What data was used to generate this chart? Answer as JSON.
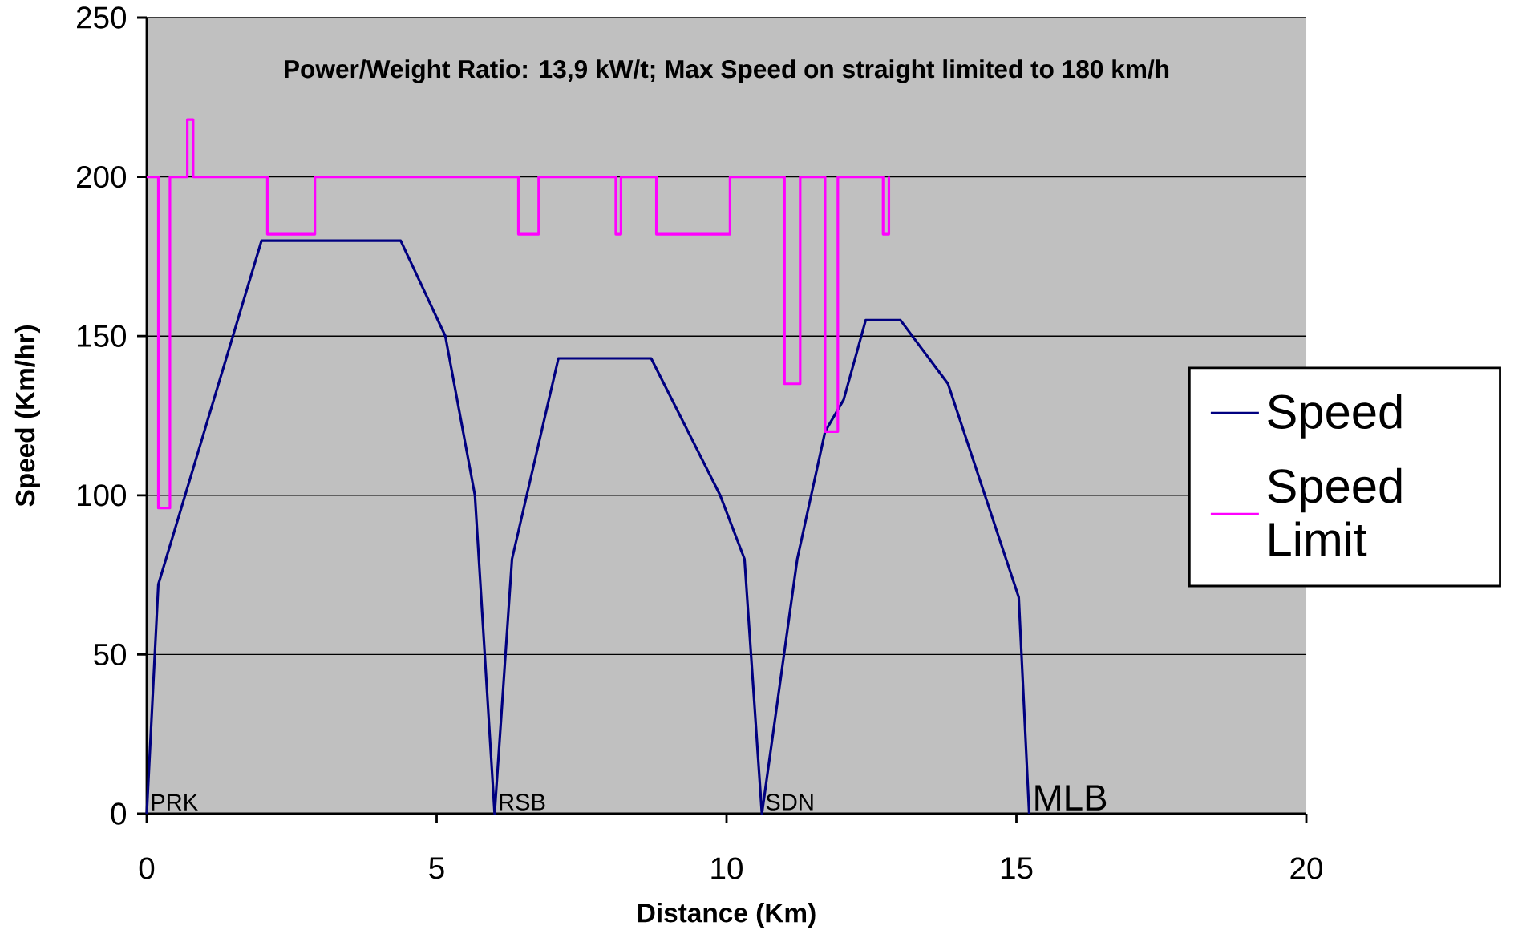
{
  "chart_data": {
    "type": "line",
    "title": "Power/Weight Ratio: 13,9 kW/t;  Max Speed on straight limited to 180 km/h",
    "xlabel": "Distance (Km)",
    "ylabel": "Speed (Km/hr)",
    "xlim": [
      0,
      20
    ],
    "xticks": [
      0,
      5,
      10,
      15,
      20
    ],
    "ylim": [
      0,
      250
    ],
    "yticks": [
      0,
      50,
      100,
      150,
      200,
      250
    ],
    "grid": "y",
    "legend": "right",
    "marker": "none",
    "line_style": "solid",
    "series": [
      {
        "name": "Speed",
        "color": "#000080",
        "x": [
          0,
          0.2,
          1.98,
          4.38,
          5.15,
          5.66,
          6.0,
          6.3,
          7.1,
          8.7,
          9.89,
          10.31,
          10.61,
          11.22,
          11.7,
          12.02,
          12.4,
          13.0,
          13.82,
          15.04,
          15.22
        ],
        "values": [
          0,
          72,
          180,
          180,
          150,
          100,
          0,
          80,
          143,
          143,
          100,
          80,
          0,
          80,
          120,
          130,
          155,
          155,
          135,
          68,
          0
        ]
      },
      {
        "name": "Speed Limit",
        "type": "step",
        "color": "#ff00ff",
        "x": [
          0,
          0.2,
          0.4,
          0.7,
          0.8,
          2.08,
          2.9,
          6.41,
          6.76,
          8.09,
          8.18,
          8.79,
          10.06,
          11.0,
          11.27,
          11.7,
          11.92,
          12.7,
          12.8
        ],
        "values": [
          200,
          96,
          200,
          218,
          200,
          182,
          200,
          182,
          200,
          182,
          200,
          182,
          200,
          135,
          200,
          120,
          200,
          182,
          200
        ]
      }
    ],
    "annotations": [
      {
        "text": "PRK",
        "x": 0,
        "y": 0
      },
      {
        "text": "RSB",
        "x": 6.0,
        "y": 0
      },
      {
        "text": "SDN",
        "x": 10.61,
        "y": 0
      },
      {
        "text": "MLB",
        "x": 15.22,
        "y": 0
      }
    ]
  }
}
